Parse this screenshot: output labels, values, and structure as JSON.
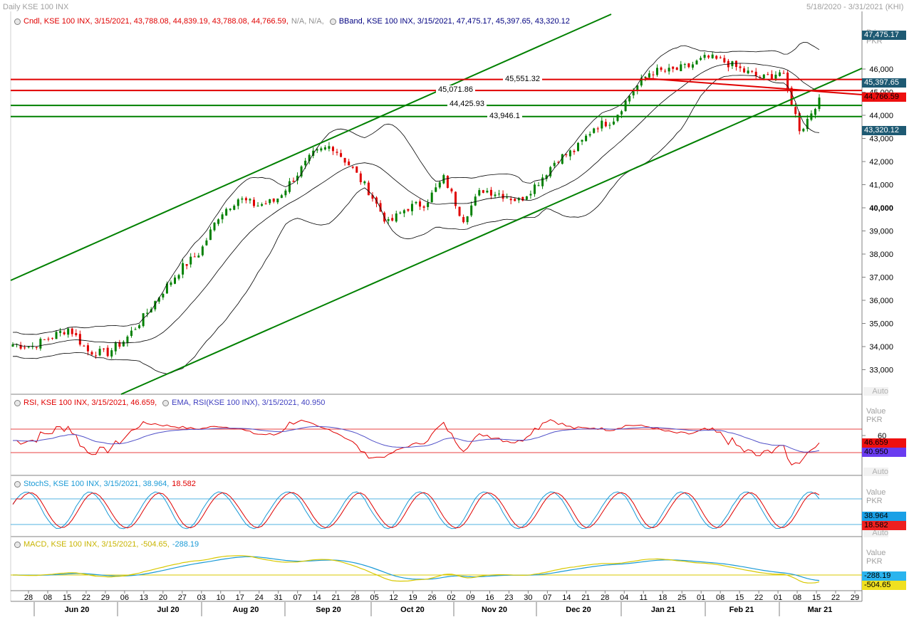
{
  "header": {
    "title": "Daily KSE 100 INX",
    "date_range": "5/18/2020 - 3/31/2021 (KHI)"
  },
  "legends": {
    "cndl": {
      "text": "Cndl, KSE 100 INX, 3/15/2021, 43,788.08, 44,839.19, 43,788.08, 44,766.59,",
      "na": "N/A, N/A,",
      "color": "#e00000"
    },
    "bband": {
      "text": "BBand, KSE 100 INX, 3/15/2021, 47,475.17, 45,397.65, 43,320.12",
      "color": "#000080"
    },
    "rsi": {
      "text": "RSI, KSE 100 INX, 3/15/2021, 46.659,",
      "color": "#e00000"
    },
    "ema": {
      "text": "EMA, RSI(KSE 100 INX), 3/15/2021, 40.950",
      "color": "#4040c0"
    },
    "stoch": {
      "text": "StochS, KSE 100 INX, 3/15/2021, 38.964,",
      "extra": "18.582",
      "color": "#1a9ad6",
      "extra_color": "#e00000"
    },
    "macd": {
      "text": "MACD, KSE 100 INX, 3/15/2021, -504.65,",
      "extra": "-288.19",
      "color": "#c8b400",
      "extra_color": "#1a9ad6"
    }
  },
  "axis_labels": {
    "price": [
      "Price",
      "PKR"
    ],
    "value": [
      "Value",
      "PKR"
    ],
    "auto": "Auto"
  },
  "badges": {
    "upper_band": "47,475.17",
    "mid_band": "45,397.65",
    "close": "44,766.59",
    "lower_band": "43,320.12",
    "rsi": "46.659",
    "ema": "40.950",
    "stoch_k": "38.964",
    "stoch_d": "18.582",
    "macd_signal": "-288.19",
    "macd": "-504.65"
  },
  "level_labels": [
    "45,551.32",
    "45,071.86",
    "44,425.93",
    "43,946.1"
  ],
  "colors": {
    "up": "#008000",
    "down": "#e00000",
    "trend": "#008000",
    "resistance": "#e00000",
    "band": "#000000",
    "rsi": "#e00000",
    "ema": "#5050c8",
    "stoch_k": "#1a9ad6",
    "stoch_d": "#e00000",
    "macd": "#d8c800",
    "macd_signal": "#1a9ad6"
  },
  "chart_data": [
    {
      "type": "candlestick",
      "series": [
        {
          "name": "KSE 100 INX"
        }
      ],
      "ylim": [
        32000,
        47800
      ],
      "yticks": [
        33000,
        34000,
        35000,
        36000,
        37000,
        38000,
        39000,
        40000,
        41000,
        42000,
        43000,
        44000,
        45000,
        46000
      ],
      "ytick_labels": [
        "33,000",
        "34,000",
        "35,000",
        "36,000",
        "37,000",
        "38,000",
        "39,000",
        "40,000",
        "41,000",
        "42,000",
        "43,000",
        "44,000",
        "45,000",
        "46,000"
      ],
      "ohlc_weekly_approx": [
        {
          "w": "2020-05-18",
          "close": 34100
        },
        {
          "w": "2020-05-25",
          "close": 34000
        },
        {
          "w": "2020-06-01",
          "close": 34400
        },
        {
          "w": "2020-06-08",
          "close": 34800
        },
        {
          "w": "2020-06-15",
          "close": 33800
        },
        {
          "w": "2020-06-22",
          "close": 33700
        },
        {
          "w": "2020-06-29",
          "close": 34300
        },
        {
          "w": "2020-07-06",
          "close": 35300
        },
        {
          "w": "2020-07-13",
          "close": 36400
        },
        {
          "w": "2020-07-20",
          "close": 37400
        },
        {
          "w": "2020-07-27",
          "close": 38100
        },
        {
          "w": "2020-08-03",
          "close": 39700
        },
        {
          "w": "2020-08-10",
          "close": 40400
        },
        {
          "w": "2020-08-17",
          "close": 40100
        },
        {
          "w": "2020-08-24",
          "close": 40300
        },
        {
          "w": "2020-08-31",
          "close": 41300
        },
        {
          "w": "2020-09-07",
          "close": 42300
        },
        {
          "w": "2020-09-14",
          "close": 42700
        },
        {
          "w": "2020-09-21",
          "close": 41800
        },
        {
          "w": "2020-09-28",
          "close": 40700
        },
        {
          "w": "2020-10-05",
          "close": 39300
        },
        {
          "w": "2020-10-12",
          "close": 40000
        },
        {
          "w": "2020-10-19",
          "close": 40200
        },
        {
          "w": "2020-10-26",
          "close": 41300
        },
        {
          "w": "2020-11-02",
          "close": 39500
        },
        {
          "w": "2020-11-09",
          "close": 40800
        },
        {
          "w": "2020-11-16",
          "close": 40600
        },
        {
          "w": "2020-11-23",
          "close": 40300
        },
        {
          "w": "2020-11-30",
          "close": 41100
        },
        {
          "w": "2020-12-07",
          "close": 42100
        },
        {
          "w": "2020-12-14",
          "close": 42500
        },
        {
          "w": "2020-12-21",
          "close": 43500
        },
        {
          "w": "2020-12-28",
          "close": 43800
        },
        {
          "w": "2021-01-04",
          "close": 45000
        },
        {
          "w": "2021-01-11",
          "close": 45900
        },
        {
          "w": "2021-01-18",
          "close": 45900
        },
        {
          "w": "2021-01-25",
          "close": 46100
        },
        {
          "w": "2021-02-01",
          "close": 46500
        },
        {
          "w": "2021-02-08",
          "close": 46300
        },
        {
          "w": "2021-02-15",
          "close": 45900
        },
        {
          "w": "2021-02-22",
          "close": 45600
        },
        {
          "w": "2021-03-01",
          "close": 45900
        },
        {
          "w": "2021-03-08",
          "close": 43300
        },
        {
          "w": "2021-03-15",
          "close": 44766.59
        }
      ],
      "bollinger_last": {
        "upper": 47475.17,
        "middle": 45397.65,
        "lower": 43320.12
      },
      "horizontal_levels": [
        45551.32,
        45071.86,
        44425.93,
        43946.1
      ]
    },
    {
      "type": "line",
      "series": [
        {
          "name": "RSI",
          "last": 46.659
        },
        {
          "name": "EMA",
          "last": 40.95
        }
      ],
      "ylim": [
        0,
        100
      ],
      "yticks": [
        60
      ]
    },
    {
      "type": "line",
      "series": [
        {
          "name": "StochS %K",
          "last": 38.964
        },
        {
          "name": "StochS %D",
          "last": 18.582
        }
      ],
      "ylim": [
        0,
        100
      ]
    },
    {
      "type": "line",
      "series": [
        {
          "name": "MACD",
          "last": -504.65
        },
        {
          "name": "Signal",
          "last": -288.19
        }
      ]
    }
  ],
  "x_axis": {
    "day_ticks": [
      "28",
      "08",
      "15",
      "22",
      "29",
      "06",
      "13",
      "20",
      "27",
      "03",
      "10",
      "17",
      "24",
      "31",
      "07",
      "14",
      "21",
      "28",
      "05",
      "12",
      "19",
      "26",
      "02",
      "09",
      "16",
      "23",
      "30",
      "07",
      "14",
      "21",
      "28",
      "04",
      "11",
      "18",
      "25",
      "01",
      "08",
      "15",
      "22",
      "01",
      "08",
      "15",
      "22",
      "29"
    ],
    "months": [
      "Jun 20",
      "Jul 20",
      "Aug 20",
      "Sep 20",
      "Oct 20",
      "Nov 20",
      "Dec 20",
      "Jan 21",
      "Feb 21",
      "Mar 21"
    ]
  }
}
